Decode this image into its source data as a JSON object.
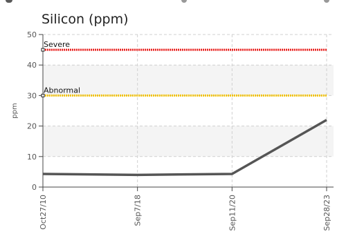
{
  "chart_data": {
    "type": "line",
    "title": "Silicon (ppm)",
    "ylabel": "ppm",
    "xlabel": "",
    "categories": [
      "Oct27/10",
      "Sep7/18",
      "Sep11/20",
      "Sep28/23"
    ],
    "series": [
      {
        "values": [
          4.3,
          4.0,
          4.3,
          22.0
        ],
        "color": "#555555"
      }
    ],
    "thresholds": [
      {
        "label": "Severe",
        "value": 45,
        "color": "#e8201e"
      },
      {
        "label": "Abnormal",
        "value": 30,
        "color": "#f2c200"
      }
    ],
    "ylim": [
      0,
      50
    ],
    "yticks": [
      0,
      10,
      20,
      30,
      40,
      50
    ],
    "grid": true,
    "legend": "none"
  }
}
